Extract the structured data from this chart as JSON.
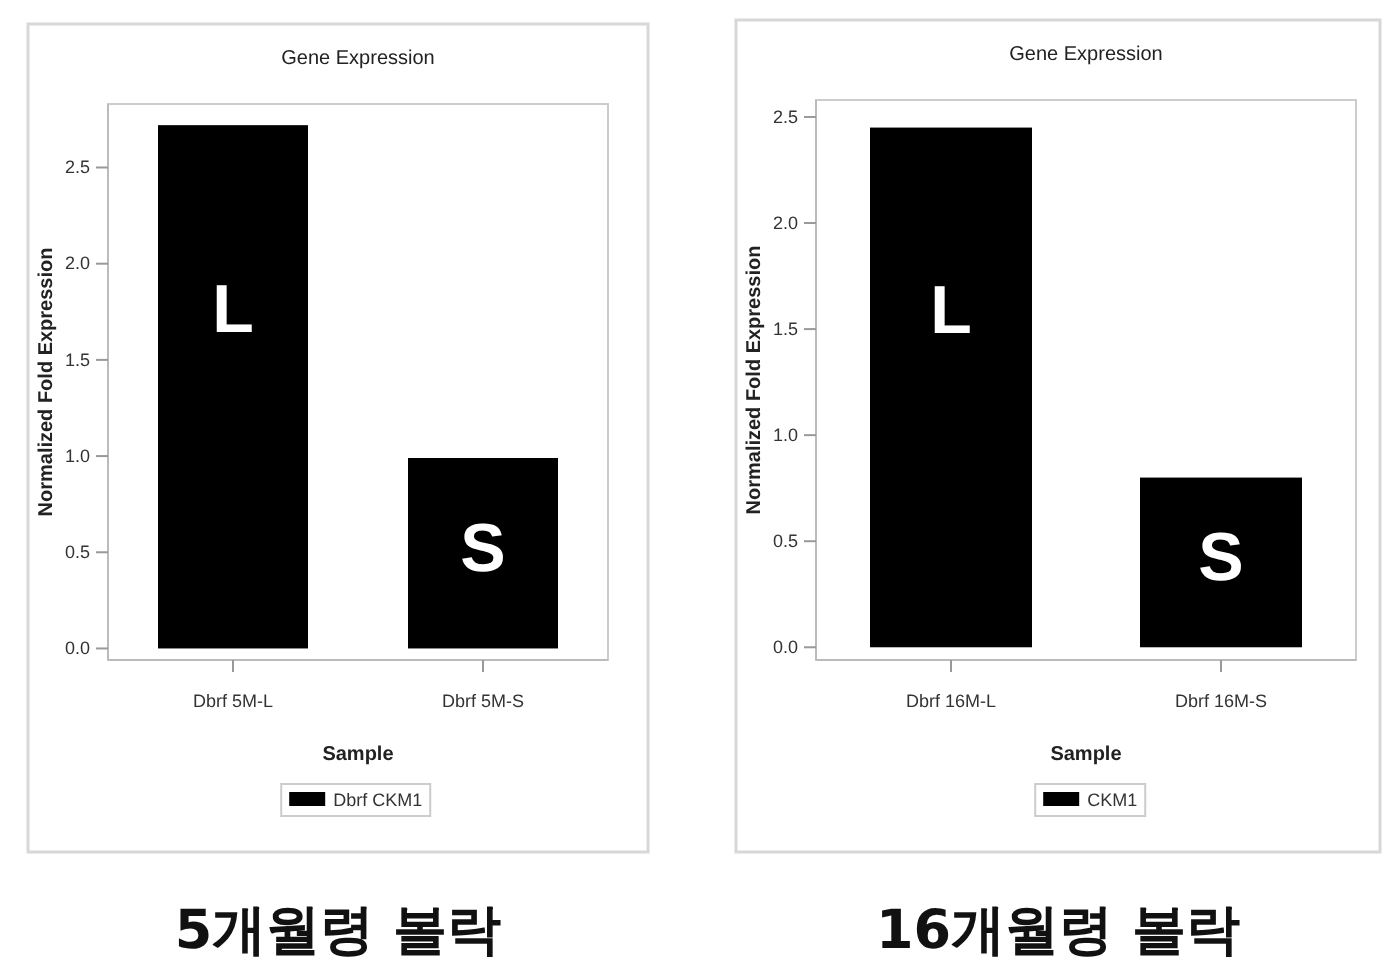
{
  "chart_data": [
    {
      "type": "bar",
      "title": "Gene Expression",
      "xlabel": "Sample",
      "ylabel": "Normalized Fold Expression",
      "categories": [
        "Dbrf 5M-L",
        "Dbrf 5M-S"
      ],
      "series": [
        {
          "name": "Dbrf CKM1",
          "color": "#000000",
          "values": [
            2.72,
            0.99
          ]
        }
      ],
      "ylim": [
        -0.06,
        2.83
      ],
      "yticks": [
        {
          "value": 0,
          "label": "0.0"
        },
        {
          "value": 0.5,
          "label": "0.5"
        },
        {
          "value": 1,
          "label": "1.0"
        },
        {
          "value": 1.5,
          "label": "1.5"
        },
        {
          "value": 2,
          "label": "2.0"
        },
        {
          "value": 2.5,
          "label": "2.5"
        }
      ],
      "legend": "bottom",
      "annotations": [
        "L",
        "S",
        "5개월령 볼락"
      ]
    },
    {
      "type": "bar",
      "title": "Gene Expression",
      "xlabel": "Sample",
      "ylabel": "Normalized Fold Expression",
      "categories": [
        "Dbrf 16M-L",
        "Dbrf 16M-S"
      ],
      "series": [
        {
          "name": "CKM1",
          "color": "#000000",
          "values": [
            2.45,
            0.8
          ]
        }
      ],
      "ylim": [
        -0.06,
        2.58
      ],
      "yticks": [
        {
          "value": 0,
          "label": "0.0"
        },
        {
          "value": 0.5,
          "label": "0.5"
        },
        {
          "value": 1,
          "label": "1.0"
        },
        {
          "value": 1.5,
          "label": "1.5"
        },
        {
          "value": 2,
          "label": "2.0"
        },
        {
          "value": 2.5,
          "label": "2.5"
        }
      ],
      "legend": "bottom",
      "annotations": [
        "L",
        "S",
        "16개월령 볼락"
      ]
    }
  ]
}
